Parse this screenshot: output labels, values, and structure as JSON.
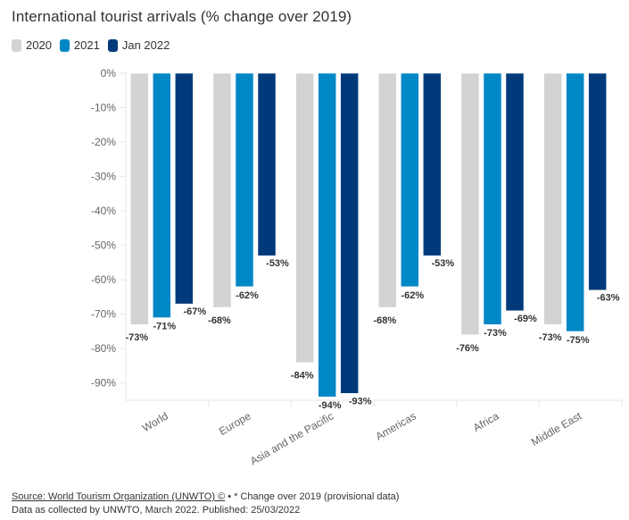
{
  "chart_data": {
    "type": "bar",
    "title": "International tourist arrivals (% change over 2019)",
    "xlabel": "",
    "ylabel": "",
    "ylim": [
      -95,
      0
    ],
    "yticks": [
      0,
      -10,
      -20,
      -30,
      -40,
      -50,
      -60,
      -70,
      -80,
      -90
    ],
    "ytick_labels": [
      "0%",
      "-10%",
      "-20%",
      "-30%",
      "-40%",
      "-50%",
      "-60%",
      "-70%",
      "-80%",
      "-90%"
    ],
    "grid": false,
    "legend_position": "top-left",
    "categories": [
      "World",
      "Europe",
      "Asia and the Pacific",
      "Americas",
      "Africa",
      "Middle East"
    ],
    "series": [
      {
        "name": "2020",
        "color": "#d3d3d3",
        "values": [
          -73,
          -68,
          -84,
          -68,
          -76,
          -73
        ],
        "labels": [
          "-73%",
          "-68%",
          "-84%",
          "-68%",
          "-76%",
          "-73%"
        ]
      },
      {
        "name": "2021",
        "color": "#0087c6",
        "values": [
          -71,
          -62,
          -94,
          -62,
          -73,
          -75
        ],
        "labels": [
          "-71%",
          "-62%",
          "-94%",
          "-62%",
          "-73%",
          "-75%"
        ]
      },
      {
        "name": "Jan 2022",
        "color": "#003a7a",
        "values": [
          -67,
          -53,
          -93,
          -53,
          -69,
          -63
        ],
        "labels": [
          "-67%",
          "-53%",
          "-93%",
          "-53%",
          "-69%",
          "-63%"
        ]
      }
    ]
  },
  "footer": {
    "source_link": "Source: World Tourism Organization (UNWTO) ©",
    "source_note": " • * Change over 2019 (provisional data)",
    "line2": "Data as collected by UNWTO, March 2022. Published: 25/03/2022"
  }
}
